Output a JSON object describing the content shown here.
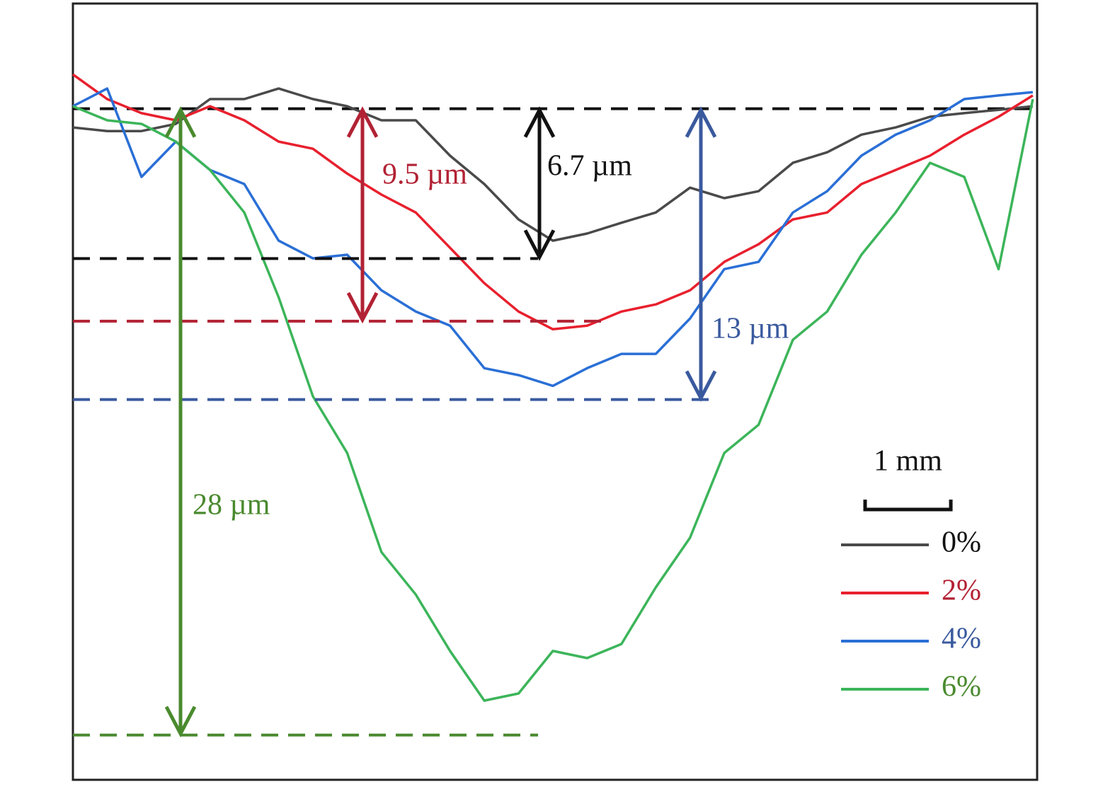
{
  "chart_data": {
    "type": "line",
    "xlim": [
      0,
      11.25
    ],
    "ylim": [
      -30,
      4.7
    ],
    "x": [
      0,
      0.4,
      0.8,
      1.2,
      1.6,
      2,
      2.4,
      2.8,
      3.2,
      3.6,
      4,
      4.4,
      4.8,
      5.2,
      5.6,
      6,
      6.4,
      6.8,
      7.2,
      7.6,
      8,
      8.4,
      8.8,
      9.2,
      9.6,
      10,
      10.4,
      10.8,
      11.2
    ],
    "series": [
      {
        "name": "0%",
        "color": "#4a4a4a",
        "label_color": "#111111",
        "values": [
          -0.84,
          -1.0,
          -1.0,
          -0.68,
          0.43,
          0.43,
          0.9,
          0.43,
          0.11,
          -0.52,
          -0.52,
          -2.1,
          -3.37,
          -4.95,
          -5.9,
          -5.58,
          -5.1,
          -4.64,
          -3.53,
          -4.0,
          -3.69,
          -2.42,
          -1.95,
          -1.16,
          -0.84,
          -0.36,
          -0.2,
          -0.05,
          0.11
        ]
      },
      {
        "name": "2%",
        "color": "#e8202e",
        "label_color": "#b22234",
        "values": [
          1.53,
          0.43,
          -0.2,
          -0.52,
          0.11,
          -0.52,
          -1.47,
          -1.79,
          -2.9,
          -3.84,
          -4.64,
          -6.22,
          -7.8,
          -9.07,
          -9.86,
          -9.7,
          -9.07,
          -8.75,
          -8.12,
          -6.85,
          -6.06,
          -4.95,
          -4.64,
          -3.37,
          -2.74,
          -2.1,
          -1.16,
          -0.36,
          0.59
        ]
      },
      {
        "name": "4%",
        "color": "#2a6fd6",
        "label_color": "#3a5a9e",
        "values": [
          0.11,
          0.9,
          -3.05,
          -1.47,
          -2.74,
          -3.37,
          -5.9,
          -6.69,
          -6.53,
          -8.12,
          -9.07,
          -9.7,
          -11.6,
          -11.91,
          -12.39,
          -11.6,
          -10.96,
          -10.96,
          -9.38,
          -7.17,
          -6.85,
          -4.64,
          -3.69,
          -2.1,
          -1.16,
          -0.52,
          0.43,
          0.59,
          0.74
        ]
      },
      {
        "name": "6%",
        "color": "#3cb55a",
        "label_color": "#4a8a2e",
        "values": [
          0.11,
          -0.52,
          -0.68,
          -1.47,
          -2.74,
          -4.64,
          -8.43,
          -12.86,
          -15.39,
          -19.82,
          -21.72,
          -24.24,
          -26.46,
          -26.14,
          -24.24,
          -24.56,
          -23.93,
          -21.4,
          -19.18,
          -15.39,
          -14.13,
          -10.33,
          -9.07,
          -6.53,
          -4.64,
          -2.42,
          -3.05,
          -7.17,
          0.43
        ]
      }
    ],
    "depths": [
      {
        "value": 6.7,
        "label": "6.7 µm",
        "color": "#111111"
      },
      {
        "value": 9.5,
        "label": "9.5 µm",
        "color": "#b22234"
      },
      {
        "value": 13,
        "label": "13 µm",
        "color": "#3a5a9e"
      },
      {
        "value": 28,
        "label": "28 µm",
        "color": "#4a8a2e"
      }
    ],
    "scale_bar": {
      "value": 1,
      "label": "1 mm"
    }
  }
}
